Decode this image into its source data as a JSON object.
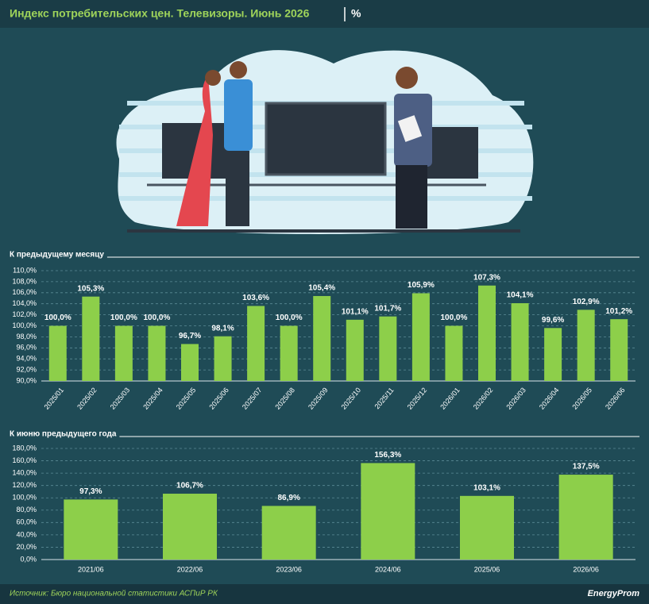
{
  "header": {
    "title": "Индекс потребительских цен. Телевизоры. Июнь 2026",
    "unit": "%"
  },
  "chart_data": [
    {
      "type": "bar",
      "title": "К предыдущему месяцу",
      "categories": [
        "2025/01",
        "2025/02",
        "2025/03",
        "2025/04",
        "2025/05",
        "2025/06",
        "2025/07",
        "2025/08",
        "2025/09",
        "2025/10",
        "2025/11",
        "2025/12",
        "2026/01",
        "2026/02",
        "2026/03",
        "2026/04",
        "2026/05",
        "2026/06"
      ],
      "values": [
        100.0,
        105.3,
        100.0,
        100.0,
        96.7,
        98.1,
        103.6,
        100.0,
        105.4,
        101.1,
        101.7,
        105.9,
        100.0,
        107.3,
        104.1,
        99.6,
        102.9,
        101.2
      ],
      "value_labels": [
        "100,0%",
        "105,3%",
        "100,0%",
        "100,0%",
        "96,7%",
        "98,1%",
        "103,6%",
        "100,0%",
        "105,4%",
        "101,1%",
        "101,7%",
        "105,9%",
        "100,0%",
        "107,3%",
        "104,1%",
        "99,6%",
        "102,9%",
        "101,2%"
      ],
      "color": "#8dcf4a",
      "ylim": [
        90,
        110
      ],
      "yticks": [
        {
          "value": 90,
          "label": "90,0%"
        },
        {
          "value": 92,
          "label": "92,0%"
        },
        {
          "value": 94,
          "label": "94,0%"
        },
        {
          "value": 96,
          "label": "96,0%"
        },
        {
          "value": 98,
          "label": "98,0%"
        },
        {
          "value": 100,
          "label": "100,0%"
        },
        {
          "value": 102,
          "label": "102,0%"
        },
        {
          "value": 104,
          "label": "104,0%"
        },
        {
          "value": 106,
          "label": "106,0%"
        },
        {
          "value": 108,
          "label": "108,0%"
        },
        {
          "value": 110,
          "label": "110,0%"
        }
      ],
      "grid": true
    },
    {
      "type": "bar",
      "title": "К июню предыдущего года",
      "categories": [
        "2021/06",
        "2022/06",
        "2023/06",
        "2024/06",
        "2025/06",
        "2026/06"
      ],
      "values": [
        97.3,
        106.7,
        86.9,
        156.3,
        103.1,
        137.5
      ],
      "value_labels": [
        "97,3%",
        "106,7%",
        "86,9%",
        "156,3%",
        "103,1%",
        "137,5%"
      ],
      "color": "#8dcf4a",
      "ylim": [
        0,
        180
      ],
      "yticks": [
        {
          "value": 0,
          "label": "0,0%"
        },
        {
          "value": 20,
          "label": "20,0%"
        },
        {
          "value": 40,
          "label": "40,0%"
        },
        {
          "value": 60,
          "label": "60,0%"
        },
        {
          "value": 80,
          "label": "80,0%"
        },
        {
          "value": 100,
          "label": "100,0%"
        },
        {
          "value": 120,
          "label": "120,0%"
        },
        {
          "value": 140,
          "label": "140,0%"
        },
        {
          "value": 160,
          "label": "160,0%"
        },
        {
          "value": 180,
          "label": "180,0%"
        }
      ],
      "grid": true
    }
  ],
  "footer": {
    "source": "Источник: Бюро национальной статистики АСПиР РК",
    "brand": "EnergyProm"
  }
}
